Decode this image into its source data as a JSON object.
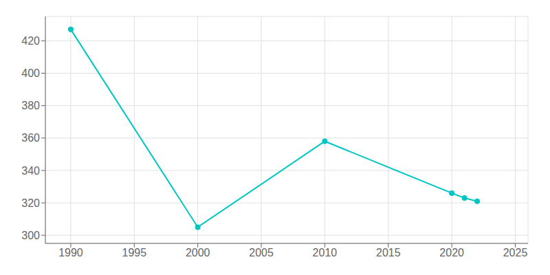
{
  "chart_data": {
    "type": "line",
    "x": [
      1990,
      2000,
      2010,
      2020,
      2021,
      2022
    ],
    "values": [
      427,
      305,
      358,
      326,
      323,
      321
    ],
    "color": "#00C5C5",
    "marker": "o",
    "xlim": [
      1988,
      2026
    ],
    "ylim": [
      295,
      435
    ],
    "xticks": [
      1990,
      1995,
      2000,
      2005,
      2010,
      2015,
      2020,
      2025
    ],
    "yticks": [
      300,
      320,
      340,
      360,
      380,
      400,
      420
    ],
    "grid": true
  }
}
